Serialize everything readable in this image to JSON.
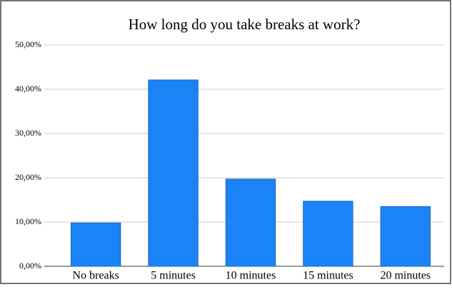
{
  "chart_data": {
    "type": "bar",
    "title": "How long do you take breaks at work?",
    "categories": [
      "No breaks",
      "5 minutes",
      "10 minutes",
      "15 minutes",
      "20 minutes"
    ],
    "values": [
      9.8,
      42.1,
      19.7,
      14.7,
      13.5
    ],
    "color": "#1a84f7",
    "ylim": [
      0,
      50
    ],
    "yticks": [
      {
        "value": 0,
        "label": "0,00%"
      },
      {
        "value": 10,
        "label": "10,00%"
      },
      {
        "value": 20,
        "label": "20,00%"
      },
      {
        "value": 30,
        "label": "30,00%"
      },
      {
        "value": 40,
        "label": "40,00%"
      },
      {
        "value": 50,
        "label": "50,00%"
      }
    ],
    "grid": true
  }
}
